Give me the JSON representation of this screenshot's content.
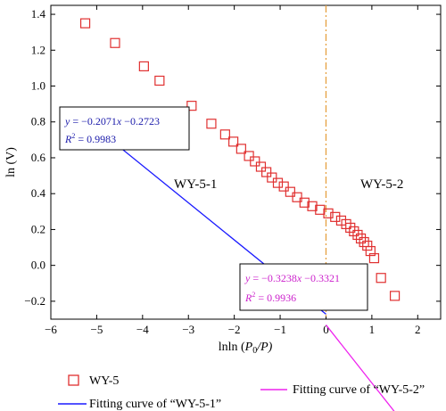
{
  "chart_data": {
    "type": "scatter",
    "title": "",
    "xlabel": "lnln (P0/P)",
    "xlabel_parts": {
      "prefix": "lnln (",
      "P": "P",
      "sub": "0",
      "suffix": "/P)"
    },
    "ylabel": "ln (V)",
    "xlim": [
      -6,
      2.5
    ],
    "ylim": [
      -0.3,
      1.45
    ],
    "x_ticks": [
      -6,
      -5,
      -4,
      -3,
      -2,
      -1,
      0,
      1,
      2
    ],
    "x_tick_labels": [
      "−6",
      "−5",
      "−4",
      "−3",
      "−2",
      "−1",
      "0",
      "1",
      "2"
    ],
    "y_ticks": [
      -0.2,
      0.0,
      0.2,
      0.4,
      0.6,
      0.8,
      1.0,
      1.2,
      1.4
    ],
    "y_tick_labels": [
      "−0.2",
      "0.0",
      "0.2",
      "0.4",
      "0.6",
      "0.8",
      "1.0",
      "1.2",
      "1.4"
    ],
    "grid": false,
    "series": [
      {
        "name": "WY-5",
        "marker": "square",
        "color": "#e03030",
        "x": [
          -5.25,
          -4.6,
          -3.97,
          -3.63,
          -2.93,
          -2.5,
          -2.2,
          -2.02,
          -1.85,
          -1.68,
          -1.55,
          -1.42,
          -1.3,
          -1.18,
          -1.05,
          -0.92,
          -0.78,
          -0.63,
          -0.47,
          -0.3,
          -0.13,
          0.05,
          0.2,
          0.33,
          0.44,
          0.53,
          0.61,
          0.69,
          0.76,
          0.83,
          0.9,
          0.97,
          1.05,
          1.2,
          1.5
        ],
        "y": [
          1.35,
          1.24,
          1.11,
          1.03,
          0.89,
          0.79,
          0.73,
          0.69,
          0.65,
          0.61,
          0.58,
          0.55,
          0.52,
          0.49,
          0.46,
          0.44,
          0.41,
          0.38,
          0.35,
          0.33,
          0.31,
          0.29,
          0.27,
          0.25,
          0.23,
          0.21,
          0.19,
          0.17,
          0.15,
          0.13,
          0.11,
          0.08,
          0.04,
          -0.07,
          -0.17
        ]
      }
    ],
    "fits": [
      {
        "name": "Fitting curve of “WY-5-1”",
        "color": "#1a1aff",
        "slope": -0.2071,
        "intercept": -0.2723,
        "x_range": [
          -5.25,
          0.0
        ]
      },
      {
        "name": "Fitting curve of “WY-5-2”",
        "color": "#ee22ee",
        "slope": -0.3238,
        "intercept": -0.3321,
        "x_range": [
          0.0,
          1.5
        ]
      }
    ],
    "vline": {
      "x": 0,
      "color": "#e6a040"
    },
    "annotations": {
      "region1": "WY-5-1",
      "region2": "WY-5-2",
      "eq1": {
        "y": "y",
        "eq": " = −0.2071",
        "x": "x",
        "rest": " −0.2723",
        "r": "R",
        "sup": "2",
        "val": " = 0.9983",
        "color": "#1a1aaa"
      },
      "eq2": {
        "y": "y",
        "eq": " = −0.3238",
        "x": "x",
        "rest": " −0.3321",
        "r": "R",
        "sup": "2",
        "val": " = 0.9936",
        "color": "#cc22cc"
      }
    },
    "legend": {
      "placement": "bottom",
      "items": [
        {
          "label": "WY-5",
          "type": "marker",
          "color": "#e03030"
        },
        {
          "label": "Fitting curve of “WY-5-1”",
          "type": "line",
          "color": "#1a1aff"
        },
        {
          "label": "Fitting curve of “WY-5-2”",
          "type": "line",
          "color": "#ee22ee"
        }
      ]
    }
  }
}
